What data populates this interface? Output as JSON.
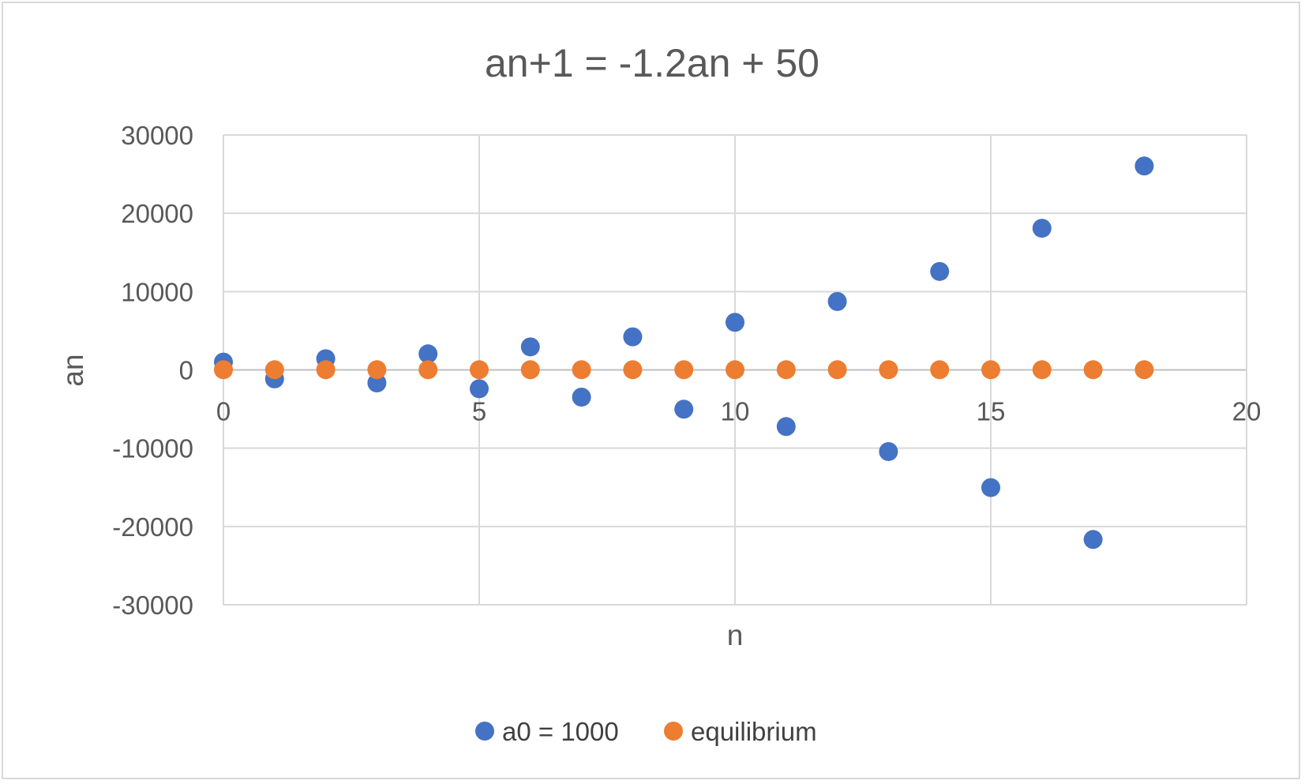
{
  "chart_data": {
    "type": "scatter",
    "title": "an+1 = -1.2an + 50",
    "xlabel": "n",
    "ylabel": "an",
    "xlim": [
      0,
      20
    ],
    "ylim": [
      -30000,
      30000
    ],
    "xticks": [
      "0",
      "5",
      "10",
      "15",
      "20"
    ],
    "yticks": [
      "30000",
      "20000",
      "10000",
      "0",
      "-10000",
      "-20000",
      "-30000"
    ],
    "grid": true,
    "legend_position": "bottom",
    "series": [
      {
        "name": "a0 = 1000",
        "color": "#4472C4",
        "x": [
          0,
          1,
          2,
          3,
          4,
          5,
          6,
          7,
          8,
          9,
          10,
          11,
          12,
          13,
          14,
          15,
          16,
          17,
          18
        ],
        "y": [
          1000,
          -1150,
          1430,
          -1666,
          2049,
          -2409,
          2941,
          -3479,
          4225,
          -5020,
          6074,
          -7239,
          8737,
          -10434,
          12571,
          -15035,
          18092,
          -21661,
          26043
        ]
      },
      {
        "name": "equilibrium",
        "color": "#ED7D31",
        "x": [
          0,
          1,
          2,
          3,
          4,
          5,
          6,
          7,
          8,
          9,
          10,
          11,
          12,
          13,
          14,
          15,
          16,
          17,
          18
        ],
        "y": [
          22.7,
          22.7,
          22.7,
          22.7,
          22.7,
          22.7,
          22.7,
          22.7,
          22.7,
          22.7,
          22.7,
          22.7,
          22.7,
          22.7,
          22.7,
          22.7,
          22.7,
          22.7,
          22.7
        ]
      }
    ]
  }
}
